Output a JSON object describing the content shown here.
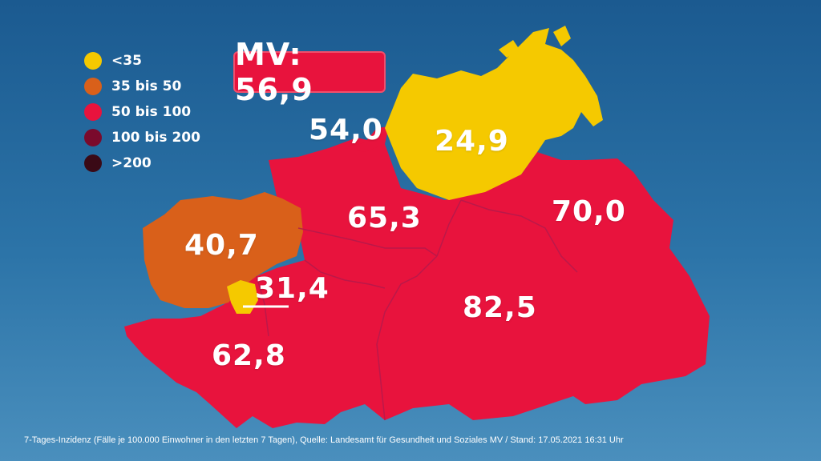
{
  "colors": {
    "lt35": "#f5c900",
    "35to50": "#d9601a",
    "50to100": "#e8133d",
    "100to200": "#7a0a2c",
    "gt200": "#3a0a16",
    "border": "#b01a4d",
    "total_badge": "#e8133d"
  },
  "legend": [
    {
      "label": "<35",
      "color": "#f5c900"
    },
    {
      "label": "35 bis 50",
      "color": "#d9601a"
    },
    {
      "label": "50 bis 100",
      "color": "#e8133d"
    },
    {
      "label": "100 bis 200",
      "color": "#7a0a2c"
    },
    {
      "label": ">200",
      "color": "#3a0a16"
    }
  ],
  "total": {
    "label": "MV: 56,9",
    "value": 56.9
  },
  "regions": [
    {
      "value_text": "54,0",
      "value": 54.0,
      "category": "50 bis 100"
    },
    {
      "value_text": "24,9",
      "value": 24.9,
      "category": "<35"
    },
    {
      "value_text": "65,3",
      "value": 65.3,
      "category": "50 bis 100"
    },
    {
      "value_text": "70,0",
      "value": 70.0,
      "category": "50 bis 100"
    },
    {
      "value_text": "40,7",
      "value": 40.7,
      "category": "35 bis 50"
    },
    {
      "value_text": "31,4",
      "value": 31.4,
      "category": "<35"
    },
    {
      "value_text": "82,5",
      "value": 82.5,
      "category": "50 bis 100"
    },
    {
      "value_text": "62,8",
      "value": 62.8,
      "category": "50 bis 100"
    }
  ],
  "footnote": "7-Tages-Inzidenz (Fälle je 100.000 Einwohner in den letzten 7 Tagen), Quelle: Landesamt für Gesundheit und Soziales MV / Stand: 17.05.2021 16:31 Uhr"
}
